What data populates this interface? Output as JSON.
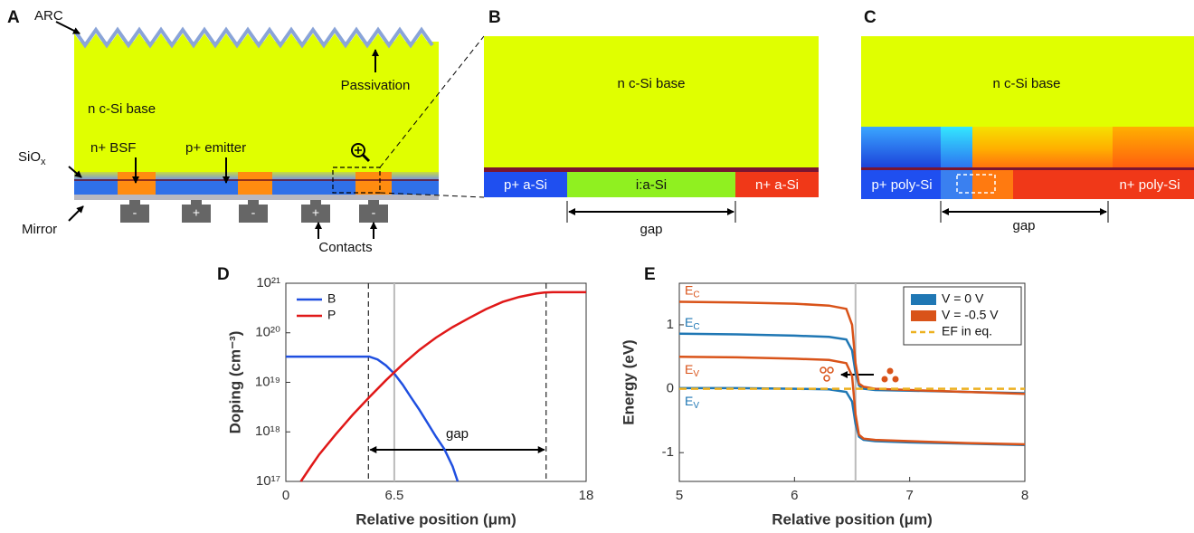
{
  "panel_a": {
    "label": "A",
    "arc": "ARC",
    "passivation": "Passivation",
    "base": "n c-Si base",
    "siox": {
      "text": "SiO",
      "sub": "x"
    },
    "bsf": "n+ BSF",
    "emitter": "p+ emitter",
    "mirror": "Mirror",
    "contacts_label": "Contacts",
    "contacts": [
      "-",
      "+",
      "-",
      "+",
      "-"
    ]
  },
  "panel_b": {
    "label": "B",
    "base": "n c-Si base",
    "p_region": "p+ a-Si",
    "i_region": "i:a-Si",
    "n_region": "n+ a-Si",
    "gap": "gap"
  },
  "panel_c": {
    "label": "C",
    "base": "n c-Si base",
    "p_region": "p+ poly-Si",
    "n_region": "n+ poly-Si",
    "gap": "gap"
  },
  "chart_data": [
    {
      "type": "line",
      "panel": "D",
      "yscale": "log",
      "legend": "upper left",
      "xlabel": "Relative position (μm)",
      "ylabel": "Doping (cm⁻³)",
      "xlim": [
        0,
        18
      ],
      "xticks": [
        0,
        6.5,
        18
      ],
      "ylim": [
        1e+17,
        1e+21
      ],
      "yticks": [
        {
          "value": 1e+17,
          "label": "10¹⁷"
        },
        {
          "value": 1e+18,
          "label": "10¹⁸"
        },
        {
          "value": 1e+19,
          "label": "10¹⁹"
        },
        {
          "value": 1e+20,
          "label": "10²⁰"
        },
        {
          "value": 1e+21,
          "label": "10²¹"
        }
      ],
      "ref_line": 6.5,
      "dashed_lines": [
        4.95,
        15.6
      ],
      "annotation": "gap",
      "series": [
        {
          "name": "B",
          "color": "#1f4fe0",
          "x": [
            0,
            2,
            4,
            5,
            5.5,
            6,
            6.5,
            7,
            7.5,
            8,
            8.5,
            9,
            9.5,
            10,
            10.3
          ],
          "values": [
            3.3e+19,
            3.3e+19,
            3.3e+19,
            3.3e+19,
            2.9e+19,
            2.2e+19,
            1.5e+19,
            9e+18,
            5e+18,
            2.8e+18,
            1.5e+18,
            8e+17,
            4.5e+17,
            2e+17,
            1e+17
          ]
        },
        {
          "name": "P",
          "color": "#e01818",
          "x": [
            0.9,
            1.5,
            2,
            3,
            4,
            5,
            6,
            7,
            8,
            9,
            10,
            11,
            12,
            13,
            14,
            15,
            15.5,
            16,
            17,
            18
          ],
          "values": [
            1e+17,
            2e+17,
            3.5e+17,
            9e+17,
            2.2e+18,
            5e+18,
            1.1e+19,
            2.3e+19,
            4.5e+19,
            8e+19,
            1.3e+20,
            2e+20,
            3e+20,
            4.2e+20,
            5.3e+20,
            6.2e+20,
            6.5e+20,
            6.6e+20,
            6.6e+20,
            6.6e+20
          ]
        }
      ]
    },
    {
      "type": "line",
      "panel": "E",
      "legend": "upper right",
      "xlabel": "Relative position (μm)",
      "ylabel": "Energy (eV)",
      "xlim": [
        5,
        8
      ],
      "xticks": [
        5,
        6,
        7,
        8
      ],
      "ylim": [
        -1.45,
        1.65
      ],
      "yticks": [
        -1,
        0,
        1
      ],
      "ref_line": 6.53,
      "x": [
        5,
        5.5,
        6,
        6.3,
        6.45,
        6.5,
        6.53,
        6.56,
        6.6,
        6.7,
        7,
        7.5,
        8
      ],
      "series": [
        {
          "name": "V = 0 V",
          "color": "#1f77b4",
          "bands": [
            {
              "label": {
                "text": "E",
                "sub": "C"
              },
              "values": [
                0.86,
                0.85,
                0.83,
                0.81,
                0.77,
                0.6,
                0.25,
                0.05,
                0.0,
                -0.02,
                -0.03,
                -0.05,
                -0.07
              ]
            },
            {
              "label": {
                "text": "E",
                "sub": "V"
              },
              "values": [
                0.01,
                0.01,
                0.0,
                -0.01,
                -0.05,
                -0.2,
                -0.55,
                -0.75,
                -0.8,
                -0.82,
                -0.84,
                -0.86,
                -0.88
              ]
            }
          ]
        },
        {
          "name": "V = -0.5 V",
          "color": "#d95319",
          "bands": [
            {
              "label": {
                "text": "E",
                "sub": "C"
              },
              "values": [
                1.36,
                1.35,
                1.33,
                1.3,
                1.25,
                1.0,
                0.4,
                0.08,
                0.03,
                0.0,
                -0.02,
                -0.05,
                -0.08
              ]
            },
            {
              "label": {
                "text": "E",
                "sub": "V"
              },
              "values": [
                0.5,
                0.49,
                0.47,
                0.45,
                0.4,
                0.2,
                -0.4,
                -0.72,
                -0.78,
                -0.8,
                -0.82,
                -0.85,
                -0.87
              ]
            }
          ]
        },
        {
          "name": "EF in eq.",
          "color": "#edb120",
          "dashed": true,
          "values": [
            0,
            0,
            0,
            0,
            0,
            0,
            0,
            0,
            0,
            0,
            0,
            0,
            0
          ]
        }
      ]
    }
  ]
}
